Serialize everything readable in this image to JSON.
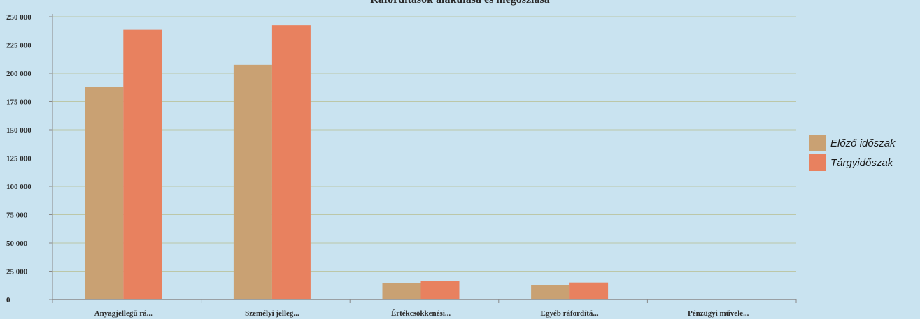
{
  "chart_data": {
    "type": "bar",
    "title": "Ráfordítások alakulása és megoszlása",
    "xlabel": "",
    "ylabel": "",
    "categories": [
      "Anyagjellegű rá...",
      "Személyi jelleg...",
      "Értékcsökkenési...",
      "Egyéb ráfordítá...",
      "Pénzügyi művele..."
    ],
    "ylim": [
      0,
      250000
    ],
    "yticks": [
      0,
      25000,
      50000,
      75000,
      100000,
      125000,
      150000,
      175000,
      200000,
      225000,
      250000
    ],
    "ytick_labels": [
      "0",
      "25 000",
      "50 000",
      "75 000",
      "100 000",
      "125 000",
      "150 000",
      "175 000",
      "200 000",
      "225 000",
      "250 000"
    ],
    "grid": true,
    "legend_position": "right",
    "series": [
      {
        "name": "Előző időszak",
        "color": "#c9a173",
        "values": [
          188000,
          207500,
          14500,
          12500,
          0
        ]
      },
      {
        "name": "Tárgyidőszak",
        "color": "#e8815f",
        "values": [
          238500,
          242500,
          16500,
          15000,
          0
        ]
      }
    ]
  }
}
